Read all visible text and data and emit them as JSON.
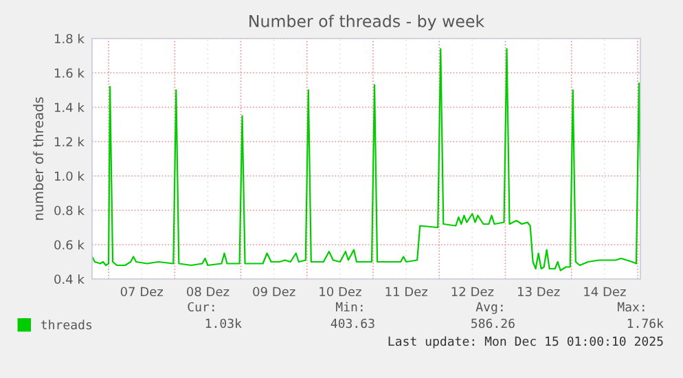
{
  "chart_data": {
    "type": "line",
    "title": "Number of threads - by week",
    "ylabel": "number of threads",
    "series": [
      {
        "name": "threads",
        "color": "#00cc00",
        "x": [
          "2025-12-06T18:00",
          "2025-12-06T19:00",
          "2025-12-06T21:00",
          "2025-12-06T22:00",
          "2025-12-06T23:00",
          "2025-12-07T00:00",
          "2025-12-07T00:30",
          "2025-12-07T01:30",
          "2025-12-07T03:00",
          "2025-12-07T06:00",
          "2025-12-07T08:00",
          "2025-12-07T09:00",
          "2025-12-07T10:00",
          "2025-12-07T14:00",
          "2025-12-07T18:00",
          "2025-12-07T23:30",
          "2025-12-08T00:30",
          "2025-12-08T01:30",
          "2025-12-08T06:00",
          "2025-12-08T10:00",
          "2025-12-08T11:00",
          "2025-12-08T12:00",
          "2025-12-08T17:00",
          "2025-12-08T18:00",
          "2025-12-08T19:00",
          "2025-12-08T23:30",
          "2025-12-09T00:30",
          "2025-12-09T01:30",
          "2025-12-09T08:00",
          "2025-12-09T09:30",
          "2025-12-09T11:00",
          "2025-12-09T14:00",
          "2025-12-09T16:00",
          "2025-12-09T18:00",
          "2025-12-09T20:00",
          "2025-12-09T21:00",
          "2025-12-09T23:30",
          "2025-12-10T00:30",
          "2025-12-10T01:30",
          "2025-12-10T06:00",
          "2025-12-10T08:00",
          "2025-12-10T09:30",
          "2025-12-10T12:00",
          "2025-12-10T14:00",
          "2025-12-10T15:00",
          "2025-12-10T17:00",
          "2025-12-10T18:00",
          "2025-12-10T23:30",
          "2025-12-11T00:30",
          "2025-12-11T01:30",
          "2025-12-11T10:00",
          "2025-12-11T11:00",
          "2025-12-11T12:00",
          "2025-12-11T16:00",
          "2025-12-11T17:00",
          "2025-12-11T23:30",
          "2025-12-12T00:30",
          "2025-12-12T01:30",
          "2025-12-12T06:00",
          "2025-12-12T07:00",
          "2025-12-12T08:00",
          "2025-12-12T09:00",
          "2025-12-12T10:00",
          "2025-12-12T12:00",
          "2025-12-12T13:00",
          "2025-12-12T14:00",
          "2025-12-12T16:00",
          "2025-12-12T18:00",
          "2025-12-12T19:00",
          "2025-12-12T20:00",
          "2025-12-12T23:30",
          "2025-12-13T00:30",
          "2025-12-13T01:30",
          "2025-12-13T04:00",
          "2025-12-13T06:00",
          "2025-12-13T08:00",
          "2025-12-13T09:00",
          "2025-12-13T10:00",
          "2025-12-13T11:00",
          "2025-12-13T12:00",
          "2025-12-13T13:00",
          "2025-12-13T14:00",
          "2025-12-13T15:00",
          "2025-12-13T16:00",
          "2025-12-13T18:00",
          "2025-12-13T19:00",
          "2025-12-13T20:00",
          "2025-12-13T22:00",
          "2025-12-13T23:30",
          "2025-12-14T00:30",
          "2025-12-14T01:30",
          "2025-12-14T03:00",
          "2025-12-14T06:00",
          "2025-12-14T10:00",
          "2025-12-14T16:00",
          "2025-12-14T18:00",
          "2025-12-14T22:00",
          "2025-12-14T23:30",
          "2025-12-15T00:30",
          "2025-12-15T01:00"
        ],
        "values": [
          0.53,
          0.5,
          0.49,
          0.5,
          0.48,
          0.49,
          1.52,
          0.5,
          0.48,
          0.48,
          0.5,
          0.53,
          0.5,
          0.49,
          0.5,
          0.49,
          1.5,
          0.49,
          0.48,
          0.49,
          0.52,
          0.48,
          0.49,
          0.55,
          0.49,
          0.49,
          1.35,
          0.49,
          0.49,
          0.55,
          0.5,
          0.5,
          0.51,
          0.5,
          0.55,
          0.5,
          0.51,
          1.5,
          0.5,
          0.5,
          0.56,
          0.51,
          0.5,
          0.56,
          0.51,
          0.57,
          0.5,
          0.5,
          1.53,
          0.5,
          0.5,
          0.53,
          0.5,
          0.51,
          0.71,
          0.7,
          1.74,
          0.72,
          0.71,
          0.76,
          0.72,
          0.77,
          0.73,
          0.78,
          0.73,
          0.77,
          0.72,
          0.72,
          0.77,
          0.72,
          0.73,
          1.74,
          0.72,
          0.74,
          0.72,
          0.73,
          0.71,
          0.5,
          0.46,
          0.55,
          0.46,
          0.47,
          0.57,
          0.46,
          0.46,
          0.5,
          0.45,
          0.47,
          0.47,
          1.5,
          0.5,
          0.48,
          0.5,
          0.51,
          0.51,
          0.52,
          0.5,
          0.49,
          1.54,
          1.03
        ]
      }
    ],
    "xlim": [
      "2025-12-06T18:00",
      "2025-12-15T01:00"
    ],
    "xticks": [
      {
        "value": "2025-12-07T00:00",
        "label": null
      },
      {
        "value": "2025-12-07T12:00",
        "label": "07 Dez"
      },
      {
        "value": "2025-12-08T00:00",
        "label": null
      },
      {
        "value": "2025-12-08T12:00",
        "label": "08 Dez"
      },
      {
        "value": "2025-12-09T00:00",
        "label": null
      },
      {
        "value": "2025-12-09T12:00",
        "label": "09 Dez"
      },
      {
        "value": "2025-12-10T00:00",
        "label": null
      },
      {
        "value": "2025-12-10T12:00",
        "label": "10 Dez"
      },
      {
        "value": "2025-12-11T00:00",
        "label": null
      },
      {
        "value": "2025-12-11T12:00",
        "label": "11 Dez"
      },
      {
        "value": "2025-12-12T00:00",
        "label": null
      },
      {
        "value": "2025-12-12T12:00",
        "label": "12 Dez"
      },
      {
        "value": "2025-12-13T00:00",
        "label": null
      },
      {
        "value": "2025-12-13T12:00",
        "label": "13 Dez"
      },
      {
        "value": "2025-12-14T00:00",
        "label": null
      },
      {
        "value": "2025-12-14T12:00",
        "label": "14 Dez"
      },
      {
        "value": "2025-12-15T00:00",
        "label": null
      }
    ],
    "ylim": [
      0.4,
      1.8
    ],
    "yticks": [
      {
        "value": 0.4,
        "label": "0.4 k"
      },
      {
        "value": 0.6,
        "label": "0.6 k"
      },
      {
        "value": 0.8,
        "label": "0.8 k"
      },
      {
        "value": 1.0,
        "label": "1.0 k"
      },
      {
        "value": 1.2,
        "label": "1.2 k"
      },
      {
        "value": 1.4,
        "label": "1.4 k"
      },
      {
        "value": 1.6,
        "label": "1.6 k"
      },
      {
        "value": 1.8,
        "label": "1.8 k"
      }
    ],
    "grid": true,
    "legend": "bottom",
    "marker": "none",
    "line_style": "solid",
    "annotations": [
      "Cur:",
      "1.03k",
      "Min:",
      "403.63",
      "Avg:",
      "586.26",
      "Max:",
      "1.76k",
      "Last update: Mon Dec 15 01:00:10 2025"
    ]
  }
}
